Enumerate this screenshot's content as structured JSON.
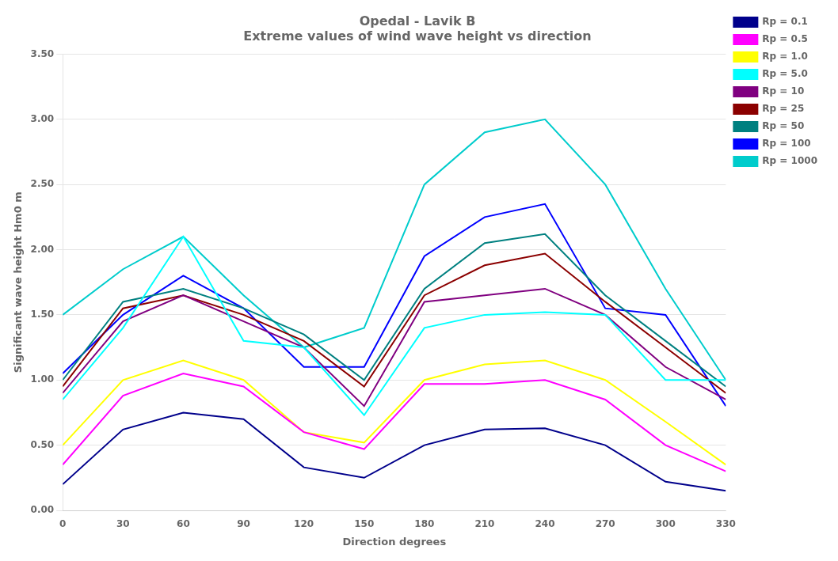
{
  "chart_data": {
    "type": "line",
    "title": "Opedal - Lavik B",
    "subtitle": "Extreme values of wind wave height vs direction",
    "x_label": "Direction degrees",
    "y_label": "Significant wave height Hm0 m",
    "x": [
      0,
      30,
      60,
      90,
      120,
      150,
      180,
      210,
      240,
      270,
      300,
      330
    ],
    "xlim": [
      0,
      330
    ],
    "xticks": [
      0,
      30,
      60,
      90,
      120,
      150,
      180,
      210,
      240,
      270,
      300,
      330
    ],
    "ylim": [
      0.0,
      3.5
    ],
    "yticks": [
      {
        "value": 0.0,
        "label": "0.00"
      },
      {
        "value": 0.5,
        "label": "0.50"
      },
      {
        "value": 1.0,
        "label": "1.00"
      },
      {
        "value": 1.5,
        "label": "1.50"
      },
      {
        "value": 2.0,
        "label": "2.00"
      },
      {
        "value": 2.5,
        "label": "2.50"
      },
      {
        "value": 3.0,
        "label": "3.00"
      },
      {
        "value": 3.5,
        "label": "3.50"
      }
    ],
    "grid": "y",
    "legend": "right",
    "series": [
      {
        "name": "Rp = 0.1",
        "color": "#00008B",
        "values": [
          0.2,
          0.62,
          0.75,
          0.7,
          0.33,
          0.25,
          0.5,
          0.62,
          0.63,
          0.5,
          0.22,
          0.15
        ]
      },
      {
        "name": "Rp = 0.5",
        "color": "#FF00FF",
        "values": [
          0.35,
          0.88,
          1.05,
          0.95,
          0.6,
          0.47,
          0.97,
          0.97,
          1.0,
          0.85,
          0.5,
          0.3
        ]
      },
      {
        "name": "Rp = 1.0",
        "color": "#FFFF00",
        "values": [
          0.5,
          1.0,
          1.15,
          1.0,
          0.6,
          0.52,
          1.0,
          1.12,
          1.15,
          1.0,
          0.68,
          0.35
        ]
      },
      {
        "name": "Rp = 5.0",
        "color": "#00FFFF",
        "values": [
          0.85,
          1.4,
          2.1,
          1.3,
          1.25,
          0.73,
          1.4,
          1.5,
          1.52,
          1.5,
          1.0,
          1.0
        ]
      },
      {
        "name": "Rp = 10",
        "color": "#800080",
        "values": [
          0.9,
          1.45,
          1.65,
          1.45,
          1.25,
          0.8,
          1.6,
          1.65,
          1.7,
          1.5,
          1.1,
          0.85
        ]
      },
      {
        "name": "Rp = 25",
        "color": "#8B0000",
        "values": [
          0.95,
          1.55,
          1.65,
          1.5,
          1.3,
          0.95,
          1.65,
          1.88,
          1.97,
          1.6,
          1.25,
          0.9
        ]
      },
      {
        "name": "Rp = 50",
        "color": "#008080",
        "values": [
          1.0,
          1.6,
          1.7,
          1.55,
          1.35,
          1.0,
          1.7,
          2.05,
          2.12,
          1.65,
          1.3,
          0.95
        ]
      },
      {
        "name": "Rp = 100",
        "color": "#0000FF",
        "values": [
          1.05,
          1.5,
          1.8,
          1.55,
          1.1,
          1.1,
          1.95,
          2.25,
          2.35,
          1.55,
          1.5,
          0.8
        ]
      },
      {
        "name": "Rp = 1000",
        "color": "#00CCCC",
        "values": [
          1.5,
          1.85,
          2.1,
          1.65,
          1.25,
          1.4,
          2.5,
          2.9,
          3.0,
          2.5,
          1.7,
          1.0
        ]
      }
    ]
  }
}
